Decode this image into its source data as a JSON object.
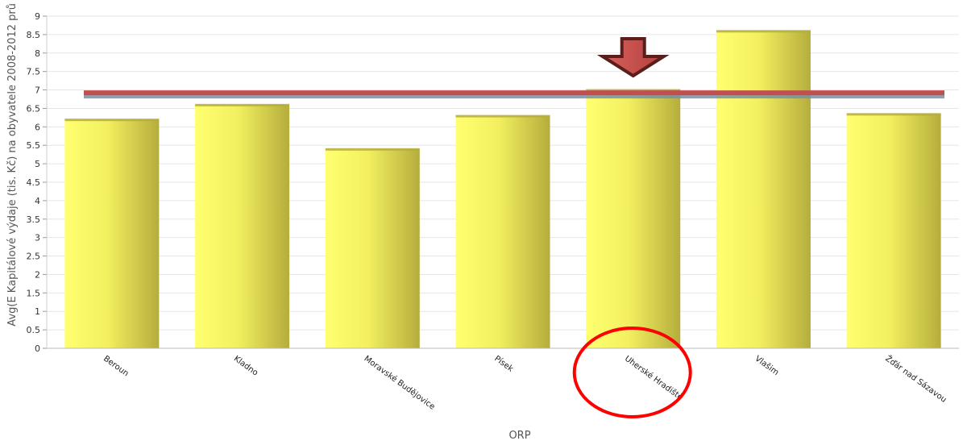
{
  "chart_data": {
    "type": "bar",
    "categories": [
      "Beroun",
      "Kladno",
      "Moravské Budějovice",
      "Písek",
      "Uherské Hradiště",
      "Vlašim",
      "Žďár nad Sázavou"
    ],
    "values": [
      6.2,
      6.6,
      5.4,
      6.3,
      7.0,
      8.6,
      6.35
    ],
    "xlabel": "ORP",
    "ylabel": "Avg(E Kapitálové výdaje (tis. Kč) na obyvatele 2008-2012 prů",
    "ylim": [
      0,
      9
    ],
    "yticks": [
      "0",
      "0.5",
      "1",
      "1.5",
      "2",
      "2.5",
      "3",
      "3.5",
      "4",
      "4.5",
      "5",
      "5.5",
      "6",
      "6.5",
      "7",
      "7.5",
      "8",
      "8.5",
      "9"
    ],
    "reference_line": 6.9,
    "grid": true,
    "highlight": {
      "category": "Uherské Hradiště",
      "arrow_color": "#c0504d",
      "circle_color": "#ff0000"
    },
    "colors": {
      "bar_light": "#ffff66",
      "bar_dark": "#b5ad3c",
      "reference_line": "#c0504d",
      "reference_line_under": "#7b8fa6",
      "grid": "#e6e6e6"
    }
  }
}
